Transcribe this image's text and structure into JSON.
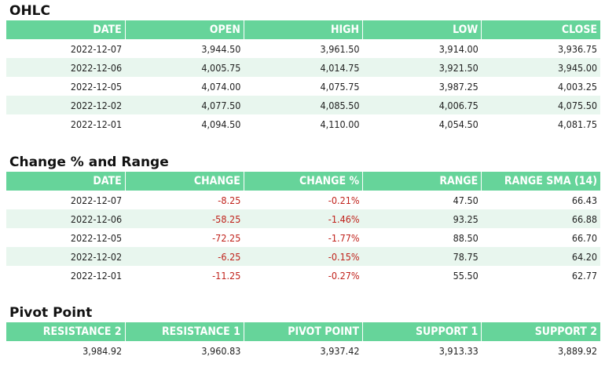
{
  "ohlc": {
    "title": "OHLC",
    "columns": [
      "DATE",
      "OPEN",
      "HIGH",
      "LOW",
      "CLOSE"
    ],
    "rows": [
      [
        "2022-12-07",
        "3,944.50",
        "3,961.50",
        "3,914.00",
        "3,936.75"
      ],
      [
        "2022-12-06",
        "4,005.75",
        "4,014.75",
        "3,921.50",
        "3,945.00"
      ],
      [
        "2022-12-05",
        "4,074.00",
        "4,075.75",
        "3,987.25",
        "4,003.25"
      ],
      [
        "2022-12-02",
        "4,077.50",
        "4,085.50",
        "4,006.75",
        "4,075.50"
      ],
      [
        "2022-12-01",
        "4,094.50",
        "4,110.00",
        "4,054.50",
        "4,081.75"
      ]
    ]
  },
  "change": {
    "title": "Change % and Range",
    "columns": [
      "DATE",
      "CHANGE",
      "CHANGE %",
      "RANGE",
      "RANGE SMA (14)"
    ],
    "rows": [
      [
        "2022-12-07",
        "-8.25",
        "-0.21%",
        "47.50",
        "66.43"
      ],
      [
        "2022-12-06",
        "-58.25",
        "-1.46%",
        "93.25",
        "66.88"
      ],
      [
        "2022-12-05",
        "-72.25",
        "-1.77%",
        "88.50",
        "66.70"
      ],
      [
        "2022-12-02",
        "-6.25",
        "-0.15%",
        "78.75",
        "64.20"
      ],
      [
        "2022-12-01",
        "-11.25",
        "-0.27%",
        "55.50",
        "62.77"
      ]
    ]
  },
  "pivot": {
    "title": "Pivot Point",
    "columns": [
      "RESISTANCE 2",
      "RESISTANCE 1",
      "PIVOT POINT",
      "SUPPORT 1",
      "SUPPORT 2"
    ],
    "rows": [
      [
        "3,984.92",
        "3,960.83",
        "3,937.42",
        "3,913.33",
        "3,889.92"
      ]
    ]
  },
  "colors": {
    "header_bg": "#66d49a",
    "stripe_bg": "#e8f6ee",
    "negative_text": "#c0221b"
  }
}
